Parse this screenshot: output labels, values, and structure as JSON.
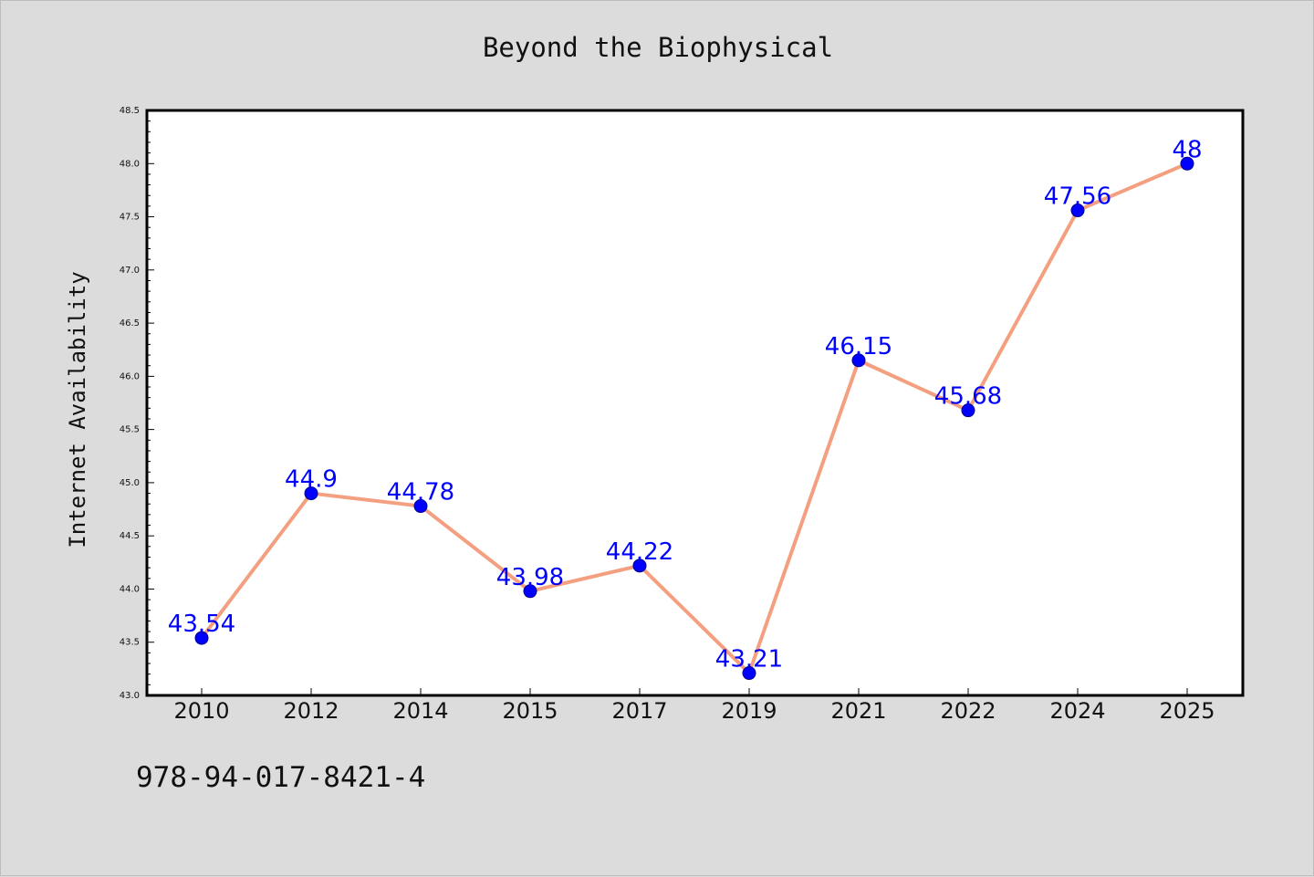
{
  "chart_data": {
    "type": "line",
    "title": "Beyond the Biophysical",
    "xlabel": "",
    "ylabel": "Internet Availability",
    "categories": [
      "2010",
      "2012",
      "2014",
      "2015",
      "2017",
      "2019",
      "2021",
      "2022",
      "2024",
      "2025"
    ],
    "series": [
      {
        "values": [
          43.54,
          44.9,
          44.78,
          43.98,
          44.22,
          43.21,
          46.15,
          45.68,
          47.56,
          48
        ]
      }
    ],
    "data_labels": [
      "43.54",
      "44.9",
      "44.78",
      "43.98",
      "44.22",
      "43.21",
      "46.15",
      "45.68",
      "47.56",
      "48"
    ],
    "ylim": [
      43.0,
      48.5
    ],
    "yticks": [
      "43.0",
      "43.5",
      "44.0",
      "44.5",
      "45.0",
      "45.5",
      "46.0",
      "46.5",
      "47.0",
      "47.5",
      "48.0",
      "48.5"
    ],
    "grid": false,
    "legend": "none",
    "colors": {
      "line": "#f4a080",
      "marker": "#0000ff",
      "label": "#0000ff",
      "figure_bg": "#dcdcdc",
      "plot_bg": "#ffffff"
    }
  },
  "footer_text": "978-94-017-8421-4"
}
